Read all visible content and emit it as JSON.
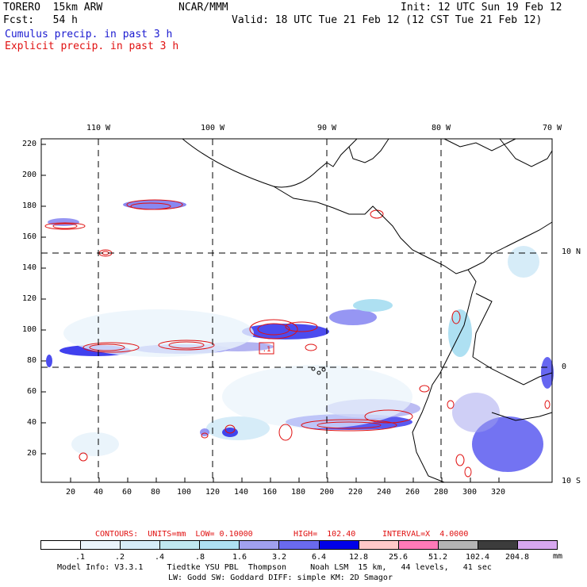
{
  "header": {
    "model": "TORERO  15km ARW",
    "org": "NCAR/MMM",
    "init": "Init: 12 UTC Sun 19 Feb 12",
    "fcst": "Fcst:   54 h",
    "valid": "Valid: 18 UTC Tue 21 Feb 12 (12 CST Tue 21 Feb 12)",
    "cumulus": "Cumulus precip. in past 3 h",
    "explicit": "Explicit precip. in past 3 h"
  },
  "lon_labels": [
    "110 W",
    "100 W",
    "90 W",
    "80 W",
    "70 W"
  ],
  "lat_labels": [
    "10 N",
    "0",
    "10 S"
  ],
  "x_ticks": [
    "20",
    "40",
    "60",
    "80",
    "100",
    "120",
    "140",
    "160",
    "180",
    "200",
    "220",
    "240",
    "260",
    "280",
    "300",
    "320"
  ],
  "y_ticks": [
    "220",
    "200",
    "180",
    "160",
    "140",
    "120",
    "100",
    "80",
    "60",
    "40",
    "20"
  ],
  "contour_box": ".1",
  "contours": {
    "units": "CONTOURS:  UNITS=mm  LOW= 0.10000",
    "high": "HIGH=  102.40",
    "interval": "INTERVAL=X  4.0000"
  },
  "legend": {
    "labels": [
      ".1",
      ".2",
      ".4",
      ".8",
      "1.6",
      "3.2",
      "6.4",
      "12.8",
      "25.6",
      "51.2",
      "102.4",
      "204.8"
    ],
    "unit": "mm",
    "colors": [
      "#ffffff",
      "#eaf4fb",
      "#d6ecf8",
      "#c0e8f0",
      "#aee0f2",
      "#a0a0ee",
      "#6a6aee",
      "#0000e8",
      "#ffc8c8",
      "#ff7ab8",
      "#b4b4b4",
      "#3c3c3c",
      "#d8a8f0"
    ]
  },
  "footer": {
    "line1": "Model Info: V3.3.1     Tiedtke YSU PBL  Thompson     Noah LSM  15 km,   44 levels,   41 sec",
    "line2": "LW: Godd SW: Goddard DIFF: simple KM: 2D Smagor"
  }
}
